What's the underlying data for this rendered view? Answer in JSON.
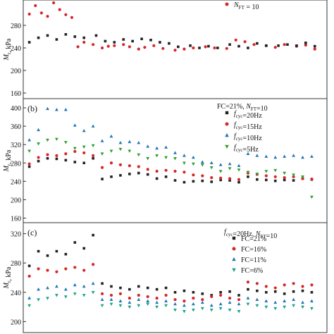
{
  "chart_data": [
    {
      "type": "scatter",
      "panel_label": "",
      "legend_title": "",
      "ylabel": "M_r, kPa",
      "ylim": [
        150,
        325
      ],
      "yticks": [
        160,
        200,
        240,
        280
      ],
      "legend_position": "top-right",
      "series": [
        {
          "name": "N_FT = 10",
          "color": "#d62728",
          "marker": "circle",
          "x": [
            0.02,
            0.04,
            0.06,
            0.08,
            0.1,
            0.12,
            0.14,
            0.16,
            0.18,
            0.2,
            0.23,
            0.26,
            0.28,
            0.3,
            0.33,
            0.35,
            0.38,
            0.4,
            0.43,
            0.46,
            0.5,
            0.53,
            0.56,
            0.6,
            0.63,
            0.67,
            0.7,
            0.73,
            0.76,
            0.8,
            0.83,
            0.86,
            0.9,
            0.93,
            0.96
          ],
          "y": [
            300,
            315,
            302,
            296,
            320,
            308,
            299,
            294,
            242,
            250,
            246,
            240,
            243,
            244,
            246,
            242,
            238,
            241,
            244,
            239,
            236,
            238,
            240,
            242,
            240,
            239,
            254,
            251,
            246,
            244,
            241,
            246,
            243,
            245,
            238
          ]
        },
        {
          "name": "",
          "color": "#222222",
          "marker": "square",
          "x": [
            0.02,
            0.05,
            0.08,
            0.11,
            0.14,
            0.17,
            0.2,
            0.24,
            0.27,
            0.3,
            0.33,
            0.36,
            0.39,
            0.42,
            0.45,
            0.48,
            0.51,
            0.55,
            0.58,
            0.61,
            0.64,
            0.68,
            0.71,
            0.74,
            0.77,
            0.8,
            0.84,
            0.87,
            0.9,
            0.93,
            0.96
          ],
          "y": [
            250,
            258,
            262,
            255,
            264,
            260,
            258,
            262,
            252,
            250,
            255,
            252,
            256,
            254,
            250,
            248,
            242,
            244,
            240,
            243,
            240,
            246,
            243,
            240,
            248,
            244,
            244,
            246,
            244,
            249,
            243
          ]
        }
      ]
    },
    {
      "type": "scatter",
      "panel_label": "(b)",
      "legend_title": "FC=21%, N_FT=10",
      "ylabel": "M_r, kPa",
      "ylim": [
        150,
        420
      ],
      "yticks": [
        160,
        200,
        240,
        280,
        320,
        360,
        400
      ],
      "legend_position": "top-right",
      "series": [
        {
          "name": "f_cyc=20Hz",
          "color": "#222222",
          "marker": "square",
          "x": [
            0.02,
            0.05,
            0.08,
            0.11,
            0.14,
            0.17,
            0.2,
            0.23,
            0.26,
            0.29,
            0.32,
            0.35,
            0.38,
            0.41,
            0.44,
            0.47,
            0.5,
            0.53,
            0.56,
            0.59,
            0.62,
            0.65,
            0.68,
            0.71,
            0.74,
            0.77,
            0.8,
            0.83,
            0.86,
            0.89,
            0.92,
            0.95
          ],
          "y": [
            272,
            284,
            290,
            289,
            286,
            282,
            280,
            290,
            245,
            250,
            253,
            256,
            258,
            255,
            246,
            250,
            242,
            238,
            240,
            241,
            239,
            243,
            242,
            238,
            250,
            244,
            243,
            241,
            243,
            242,
            246,
            244
          ]
        },
        {
          "name": "f_cyc=15Hz",
          "color": "#d62728",
          "marker": "circle",
          "x": [
            0.02,
            0.05,
            0.08,
            0.11,
            0.14,
            0.17,
            0.2,
            0.23,
            0.26,
            0.29,
            0.32,
            0.35,
            0.38,
            0.41,
            0.44,
            0.47,
            0.5,
            0.53,
            0.56,
            0.59,
            0.62,
            0.65,
            0.68,
            0.71,
            0.74,
            0.77,
            0.8,
            0.83,
            0.86,
            0.89,
            0.92,
            0.95
          ],
          "y": [
            278,
            292,
            298,
            296,
            300,
            305,
            302,
            296,
            270,
            280,
            276,
            274,
            272,
            266,
            262,
            264,
            262,
            260,
            254,
            252,
            248,
            247,
            246,
            244,
            258,
            255,
            252,
            250,
            248,
            250,
            246,
            245
          ]
        },
        {
          "name": "f_cyc=10Hz",
          "color": "#1f77b4",
          "marker": "triangle-up",
          "x": [
            0.02,
            0.05,
            0.08,
            0.11,
            0.14,
            0.17,
            0.2,
            0.23,
            0.26,
            0.29,
            0.32,
            0.35,
            0.38,
            0.41,
            0.44,
            0.47,
            0.5,
            0.53,
            0.56,
            0.59,
            0.62,
            0.65,
            0.68,
            0.71,
            0.74,
            0.77,
            0.8,
            0.83,
            0.86,
            0.89,
            0.92,
            0.95
          ],
          "y": [
            330,
            352,
            398,
            396,
            396,
            362,
            350,
            360,
            328,
            338,
            324,
            326,
            324,
            316,
            312,
            314,
            302,
            296,
            292,
            282,
            280,
            276,
            278,
            274,
            300,
            296,
            294,
            292,
            294,
            296,
            292,
            294
          ]
        },
        {
          "name": "f_cyc=5Hz",
          "color": "#2ca02c",
          "marker": "triangle-down",
          "x": [
            0.02,
            0.05,
            0.08,
            0.11,
            0.14,
            0.17,
            0.2,
            0.23,
            0.26,
            0.29,
            0.32,
            0.35,
            0.38,
            0.41,
            0.44,
            0.47,
            0.5,
            0.53,
            0.56,
            0.59,
            0.62,
            0.65,
            0.68,
            0.71,
            0.74,
            0.77,
            0.8,
            0.83,
            0.86,
            0.89,
            0.92,
            0.95
          ],
          "y": [
            306,
            322,
            330,
            332,
            325,
            312,
            315,
            318,
            300,
            306,
            310,
            306,
            298,
            290,
            296,
            292,
            290,
            280,
            278,
            276,
            270,
            262,
            268,
            265,
            260,
            256,
            262,
            264,
            258,
            254,
            250,
            206
          ]
        }
      ]
    },
    {
      "type": "scatter",
      "panel_label": "(c)",
      "legend_title": "f_cyc=20Hz, N_FT=10",
      "ylabel": "M_r, kPa",
      "ylim": [
        185,
        335
      ],
      "yticks": [
        200,
        240,
        280,
        320
      ],
      "legend_position": "top-right",
      "series": [
        {
          "name": "FC=21%",
          "color": "#222222",
          "marker": "square",
          "x": [
            0.02,
            0.05,
            0.08,
            0.11,
            0.14,
            0.17,
            0.2,
            0.23,
            0.26,
            0.29,
            0.32,
            0.35,
            0.38,
            0.41,
            0.44,
            0.47,
            0.5,
            0.53,
            0.56,
            0.59,
            0.62,
            0.65,
            0.68,
            0.71,
            0.74,
            0.77,
            0.8,
            0.83,
            0.86,
            0.89,
            0.92,
            0.95
          ],
          "y": [
            276,
            296,
            290,
            296,
            292,
            308,
            300,
            318,
            252,
            248,
            246,
            244,
            248,
            246,
            244,
            246,
            240,
            242,
            240,
            238,
            236,
            240,
            241,
            236,
            244,
            242,
            240,
            241,
            238,
            241,
            242,
            240
          ]
        },
        {
          "name": "FC=16%",
          "color": "#d62728",
          "marker": "circle",
          "x": [
            0.02,
            0.05,
            0.08,
            0.11,
            0.14,
            0.17,
            0.2,
            0.23,
            0.26,
            0.29,
            0.32,
            0.35,
            0.38,
            0.41,
            0.44,
            0.47,
            0.5,
            0.53,
            0.56,
            0.59,
            0.62,
            0.65,
            0.68,
            0.71,
            0.74,
            0.77,
            0.8,
            0.83,
            0.86,
            0.89,
            0.92,
            0.95
          ],
          "y": [
            262,
            272,
            270,
            268,
            272,
            274,
            270,
            278,
            238,
            236,
            238,
            232,
            236,
            234,
            232,
            236,
            230,
            228,
            232,
            230,
            234,
            236,
            232,
            230,
            254,
            252,
            248,
            246,
            250,
            252,
            248,
            250
          ]
        },
        {
          "name": "FC=11%",
          "color": "#1f77b4",
          "marker": "triangle-up",
          "x": [
            0.02,
            0.05,
            0.08,
            0.11,
            0.14,
            0.17,
            0.2,
            0.23,
            0.26,
            0.29,
            0.32,
            0.35,
            0.38,
            0.41,
            0.44,
            0.47,
            0.5,
            0.53,
            0.56,
            0.59,
            0.62,
            0.65,
            0.68,
            0.71,
            0.74,
            0.77,
            0.8,
            0.83,
            0.86,
            0.89,
            0.92,
            0.95
          ],
          "y": [
            232,
            244,
            246,
            248,
            244,
            250,
            248,
            252,
            230,
            230,
            228,
            226,
            230,
            228,
            226,
            228,
            224,
            222,
            224,
            226,
            222,
            224,
            226,
            224,
            232,
            230,
            228,
            226,
            228,
            230,
            226,
            228
          ]
        },
        {
          "name": "FC=6%",
          "color": "#17a589",
          "marker": "triangle-down",
          "x": [
            0.02,
            0.05,
            0.08,
            0.11,
            0.14,
            0.17,
            0.2,
            0.23,
            0.26,
            0.29,
            0.32,
            0.35,
            0.38,
            0.41,
            0.44,
            0.47,
            0.5,
            0.53,
            0.56,
            0.59,
            0.62,
            0.65,
            0.68,
            0.71,
            0.74,
            0.77,
            0.8,
            0.83,
            0.86,
            0.89,
            0.92,
            0.95
          ],
          "y": [
            222,
            230,
            232,
            236,
            234,
            238,
            236,
            240,
            222,
            224,
            222,
            220,
            222,
            224,
            220,
            222,
            216,
            214,
            216,
            218,
            216,
            218,
            216,
            214,
            224,
            222,
            220,
            218,
            220,
            222,
            220,
            218
          ]
        }
      ]
    }
  ]
}
